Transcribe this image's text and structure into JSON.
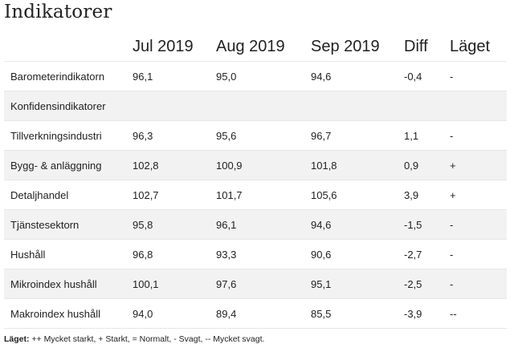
{
  "title": "Indikatorer",
  "columns": [
    "",
    "Jul 2019",
    "Aug 2019",
    "Sep 2019",
    "Diff",
    "Läget"
  ],
  "rows": [
    [
      "Barometerindikatorn",
      "96,1",
      "95,0",
      "94,6",
      "-0,4",
      "-"
    ],
    [
      "Konfidensindikatorer",
      "",
      "",
      "",
      "",
      ""
    ],
    [
      "Tillverkningsindustri",
      "96,3",
      "95,6",
      "96,7",
      "1,1",
      "-"
    ],
    [
      "Bygg- & anläggning",
      "102,8",
      "100,9",
      "101,8",
      "0,9",
      "+"
    ],
    [
      "Detaljhandel",
      "102,7",
      "101,7",
      "105,6",
      "3,9",
      "+"
    ],
    [
      "Tjänstesektorn",
      "95,8",
      "96,1",
      "94,6",
      "-1,5",
      "-"
    ],
    [
      "Hushåll",
      "96,8",
      "93,3",
      "90,6",
      "-2,7",
      "-"
    ],
    [
      "Mikroindex hushåll",
      "100,1",
      "97,6",
      "95,1",
      "-2,5",
      "-"
    ],
    [
      "Makroindex hushåll",
      "94,0",
      "89,4",
      "85,5",
      "-3,9",
      "--"
    ]
  ],
  "footer": {
    "label": "Läget:",
    "text": " ++ Mycket starkt, + Starkt, = Normalt, - Svagt, -- Mycket svagt."
  }
}
